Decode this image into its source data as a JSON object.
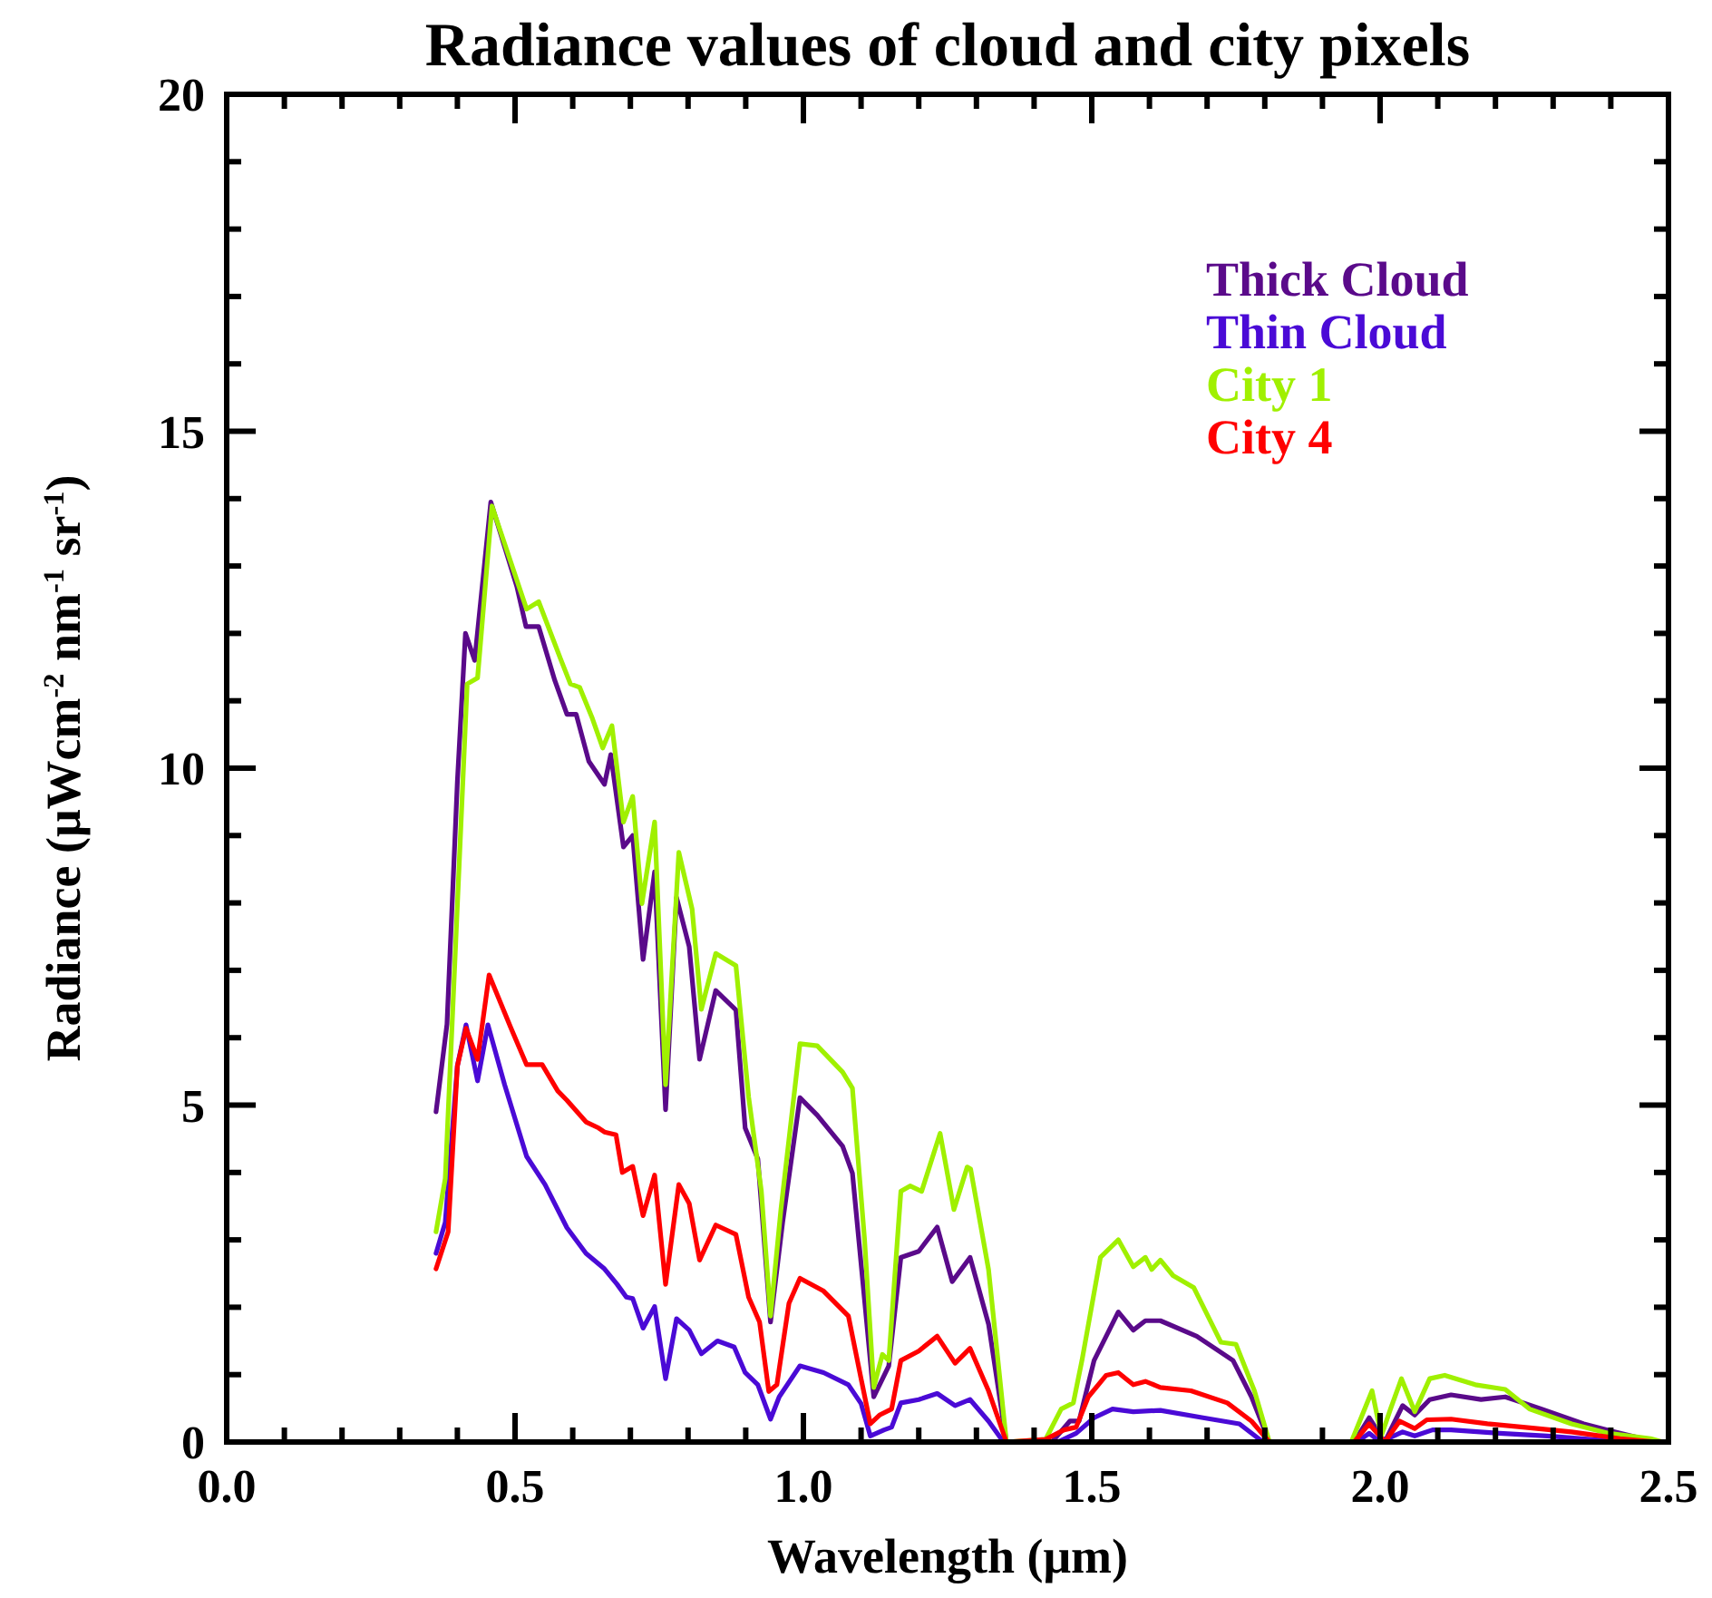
{
  "chart_data": {
    "type": "line",
    "title": "Radiance values of cloud and city pixels",
    "xlabel": "Wavelength (μm)",
    "ylabel": "Radiance (μWcm$^{-2}$ nm$^{-1}$ sr$^{-1}$)",
    "xlim": [
      0,
      2.5
    ],
    "xticks": [
      {
        "value": 0,
        "label": "0.0"
      },
      {
        "value": 0.5,
        "label": "0.5"
      },
      {
        "value": 1,
        "label": "1.0"
      },
      {
        "value": 1.5,
        "label": "1.5"
      },
      {
        "value": 2,
        "label": "2.0"
      },
      {
        "value": 2.5,
        "label": "2.5"
      }
    ],
    "ylim": [
      0,
      20
    ],
    "yticks": [
      0,
      5,
      10,
      15,
      20
    ],
    "legend": "top right",
    "series": [
      {
        "name": "Thick Cloud",
        "color": "#5a0a8a",
        "x": [
          0.363,
          0.382,
          0.4,
          0.414,
          0.43,
          0.458,
          0.503,
          0.519,
          0.541,
          0.569,
          0.59,
          0.606,
          0.628,
          0.655,
          0.666,
          0.688,
          0.704,
          0.722,
          0.742,
          0.761,
          0.78,
          0.802,
          0.82,
          0.848,
          0.883,
          0.899,
          0.921,
          0.943,
          0.964,
          0.994,
          1.024,
          1.068,
          1.085,
          1.106,
          1.122,
          1.148,
          1.169,
          1.2,
          1.232,
          1.258,
          1.289,
          1.321,
          1.352,
          1.431,
          1.462,
          1.478,
          1.504,
          1.546,
          1.572,
          1.593,
          1.619,
          1.682,
          1.745,
          1.777,
          1.808,
          1.955,
          1.981,
          2.008,
          2.039,
          2.06,
          2.086,
          2.123,
          2.175,
          2.217,
          2.28,
          2.353,
          2.416,
          2.479
        ],
        "values": [
          4.9,
          6.2,
          9.8,
          12.0,
          11.6,
          13.95,
          12.7,
          12.1,
          12.1,
          11.3,
          10.8,
          10.8,
          10.1,
          9.76,
          10.2,
          8.83,
          9.0,
          7.16,
          8.46,
          4.93,
          8.08,
          7.35,
          5.68,
          6.7,
          6.41,
          4.66,
          4.2,
          1.78,
          3.26,
          5.11,
          4.85,
          4.39,
          3.99,
          2.11,
          0.67,
          1.13,
          2.74,
          2.83,
          3.19,
          2.38,
          2.74,
          1.75,
          0,
          0,
          0.31,
          0.31,
          1.21,
          1.93,
          1.66,
          1.8,
          1.8,
          1.57,
          1.21,
          0.67,
          0,
          0,
          0.36,
          0,
          0.54,
          0.4,
          0.63,
          0.7,
          0.63,
          0.67,
          0.49,
          0.27,
          0.13,
          0
        ]
      },
      {
        "name": "Thin Cloud",
        "color": "#4a0ad6",
        "x": [
          0.363,
          0.379,
          0.4,
          0.415,
          0.435,
          0.453,
          0.482,
          0.52,
          0.552,
          0.59,
          0.623,
          0.655,
          0.677,
          0.693,
          0.704,
          0.722,
          0.742,
          0.761,
          0.78,
          0.802,
          0.823,
          0.851,
          0.88,
          0.899,
          0.921,
          0.943,
          0.958,
          0.994,
          1.035,
          1.078,
          1.1,
          1.116,
          1.14,
          1.153,
          1.169,
          1.2,
          1.232,
          1.263,
          1.289,
          1.321,
          1.347,
          1.441,
          1.473,
          1.504,
          1.536,
          1.572,
          1.619,
          1.693,
          1.756,
          1.797,
          1.96,
          1.981,
          2.0,
          2.039,
          2.06,
          2.091,
          2.123,
          2.207,
          2.29,
          2.395,
          2.48
        ],
        "values": [
          2.8,
          3.26,
          5.58,
          6.19,
          5.36,
          6.19,
          5.3,
          4.24,
          3.82,
          3.18,
          2.8,
          2.57,
          2.34,
          2.15,
          2.13,
          1.69,
          2.01,
          0.94,
          1.83,
          1.66,
          1.31,
          1.5,
          1.41,
          1.03,
          0.85,
          0.34,
          0.67,
          1.13,
          1.03,
          0.85,
          0.57,
          0.09,
          0.18,
          0.22,
          0.58,
          0.63,
          0.72,
          0.54,
          0.63,
          0.31,
          0,
          0,
          0.13,
          0.36,
          0.49,
          0.45,
          0.47,
          0.36,
          0.27,
          0,
          0,
          0.13,
          0,
          0.15,
          0.09,
          0.18,
          0.18,
          0.13,
          0.09,
          0.02,
          0
        ]
      },
      {
        "name": "City 1",
        "color": "#a0f000",
        "x": [
          0.363,
          0.379,
          0.417,
          0.435,
          0.46,
          0.509,
          0.52,
          0.541,
          0.579,
          0.596,
          0.612,
          0.634,
          0.652,
          0.668,
          0.688,
          0.704,
          0.72,
          0.742,
          0.761,
          0.784,
          0.807,
          0.823,
          0.848,
          0.883,
          0.905,
          0.927,
          0.943,
          0.961,
          0.994,
          1.024,
          1.068,
          1.085,
          1.106,
          1.122,
          1.137,
          1.148,
          1.169,
          1.185,
          1.205,
          1.237,
          1.261,
          1.284,
          1.29,
          1.321,
          1.352,
          1.42,
          1.447,
          1.468,
          1.483,
          1.515,
          1.546,
          1.572,
          1.593,
          1.604,
          1.619,
          1.641,
          1.677,
          1.724,
          1.75,
          1.782,
          1.808,
          1.95,
          1.986,
          2.002,
          2.018,
          2.037,
          2.06,
          2.086,
          2.112,
          2.165,
          2.217,
          2.259,
          2.332,
          2.395,
          2.469,
          2.49
        ],
        "values": [
          3.12,
          3.91,
          11.25,
          11.34,
          13.89,
          12.64,
          12.36,
          12.47,
          11.62,
          11.25,
          11.2,
          10.74,
          10.3,
          10.63,
          9.2,
          9.58,
          7.99,
          9.2,
          5.3,
          8.75,
          7.91,
          6.42,
          7.25,
          7.07,
          5.12,
          3.73,
          1.87,
          3.45,
          5.91,
          5.88,
          5.49,
          5.25,
          3.01,
          0.81,
          1.3,
          1.21,
          3.72,
          3.8,
          3.72,
          4.58,
          3.45,
          4.08,
          4.05,
          2.56,
          0,
          0.04,
          0.49,
          0.58,
          1.21,
          2.74,
          3.0,
          2.6,
          2.74,
          2.56,
          2.7,
          2.47,
          2.29,
          1.48,
          1.45,
          0.76,
          0,
          0,
          0.76,
          0.09,
          0.49,
          0.94,
          0.45,
          0.94,
          0.99,
          0.85,
          0.78,
          0.49,
          0.27,
          0.13,
          0.05,
          0
        ]
      },
      {
        "name": "City 4",
        "color": "#ff0000",
        "x": [
          0.363,
          0.384,
          0.4,
          0.415,
          0.435,
          0.455,
          0.493,
          0.52,
          0.547,
          0.574,
          0.59,
          0.623,
          0.645,
          0.655,
          0.675,
          0.686,
          0.704,
          0.722,
          0.742,
          0.761,
          0.784,
          0.802,
          0.82,
          0.848,
          0.883,
          0.905,
          0.924,
          0.94,
          0.954,
          0.975,
          0.994,
          1.035,
          1.078,
          1.1,
          1.116,
          1.132,
          1.153,
          1.169,
          1.2,
          1.232,
          1.263,
          1.289,
          1.321,
          1.352,
          1.42,
          1.452,
          1.473,
          1.494,
          1.525,
          1.546,
          1.572,
          1.593,
          1.619,
          1.672,
          1.735,
          1.777,
          1.808,
          1.955,
          1.981,
          2.008,
          2.034,
          2.06,
          2.081,
          2.123,
          2.186,
          2.248,
          2.332,
          2.416,
          2.48
        ],
        "values": [
          2.57,
          3.12,
          5.58,
          6.14,
          5.68,
          6.93,
          6.14,
          5.6,
          5.6,
          5.21,
          5.07,
          4.75,
          4.66,
          4.6,
          4.56,
          4.0,
          4.09,
          3.36,
          3.96,
          2.34,
          3.82,
          3.54,
          2.7,
          3.22,
          3.08,
          2.15,
          1.78,
          0.75,
          0.85,
          2.06,
          2.43,
          2.24,
          1.87,
          0.94,
          0.27,
          0.4,
          0.49,
          1.21,
          1.35,
          1.57,
          1.17,
          1.39,
          0.76,
          0,
          0.04,
          0.18,
          0.22,
          0.67,
          0.99,
          1.03,
          0.85,
          0.9,
          0.81,
          0.76,
          0.58,
          0.31,
          0,
          0,
          0.27,
          0,
          0.31,
          0.2,
          0.33,
          0.34,
          0.27,
          0.22,
          0.15,
          0.05,
          0
        ]
      }
    ]
  }
}
